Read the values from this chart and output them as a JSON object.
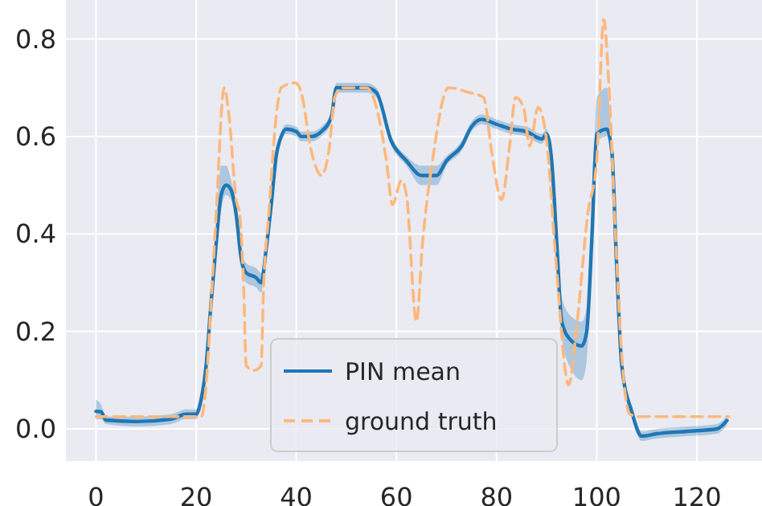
{
  "chart_data": {
    "type": "line",
    "xlim": [
      -6,
      133
    ],
    "ylim": [
      -0.066,
      0.88
    ],
    "xticks": [
      0,
      20,
      40,
      60,
      80,
      100,
      120
    ],
    "yticks": [
      {
        "value": 0,
        "label": "0.0"
      },
      {
        "value": 0.2,
        "label": "0.2"
      },
      {
        "value": 0.4,
        "label": "0.4"
      },
      {
        "value": 0.6,
        "label": "0.6"
      },
      {
        "value": 0.8,
        "label": "0.8"
      }
    ],
    "grid": true,
    "legend": "bottom",
    "series": [
      {
        "name": "PIN mean",
        "color": "#1f77b4",
        "line_style": "solid",
        "x": [
          0,
          1,
          2,
          8,
          15,
          18,
          20,
          21,
          22,
          23,
          24,
          25,
          26,
          27,
          28,
          29,
          30,
          32,
          33,
          34,
          35,
          36,
          37,
          38,
          40,
          41,
          43,
          45,
          47,
          48,
          50,
          52,
          54,
          56,
          59,
          62,
          65,
          68,
          70,
          73,
          75,
          77,
          80,
          83,
          86,
          89,
          90,
          91,
          92,
          93,
          95,
          97,
          98,
          99,
          100,
          102,
          103,
          104,
          105,
          107,
          109,
          112,
          118,
          124,
          126
        ],
        "values": [
          0.036,
          0.035,
          0.018,
          0.015,
          0.02,
          0.03,
          0.03,
          0.06,
          0.13,
          0.26,
          0.38,
          0.48,
          0.5,
          0.49,
          0.44,
          0.35,
          0.32,
          0.31,
          0.3,
          0.37,
          0.46,
          0.56,
          0.6,
          0.615,
          0.61,
          0.6,
          0.6,
          0.61,
          0.64,
          0.7,
          0.7,
          0.7,
          0.7,
          0.69,
          0.59,
          0.55,
          0.52,
          0.52,
          0.55,
          0.58,
          0.62,
          0.635,
          0.625,
          0.615,
          0.61,
          0.595,
          0.605,
          0.55,
          0.385,
          0.22,
          0.18,
          0.17,
          0.2,
          0.385,
          0.605,
          0.615,
          0.57,
          0.33,
          0.13,
          0.035,
          -0.015,
          -0.01,
          -0.005,
          0.0,
          0.017
        ],
        "lower": [
          0.02,
          0.02,
          0.01,
          0.005,
          0.01,
          0.02,
          0.02,
          0.05,
          0.12,
          0.25,
          0.35,
          0.45,
          0.48,
          0.47,
          0.42,
          0.33,
          0.3,
          0.29,
          0.28,
          0.36,
          0.45,
          0.55,
          0.59,
          0.605,
          0.6,
          0.59,
          0.59,
          0.6,
          0.63,
          0.69,
          0.69,
          0.69,
          0.69,
          0.68,
          0.58,
          0.54,
          0.5,
          0.5,
          0.54,
          0.57,
          0.61,
          0.625,
          0.615,
          0.605,
          0.6,
          0.585,
          0.595,
          0.54,
          0.37,
          0.19,
          0.12,
          0.1,
          0.14,
          0.37,
          0.59,
          0.6,
          0.55,
          0.32,
          0.12,
          0.025,
          -0.025,
          -0.02,
          -0.015,
          -0.01,
          0.007
        ],
        "upper": [
          0.06,
          0.05,
          0.025,
          0.025,
          0.03,
          0.04,
          0.04,
          0.07,
          0.14,
          0.27,
          0.42,
          0.54,
          0.54,
          0.51,
          0.46,
          0.37,
          0.34,
          0.33,
          0.32,
          0.38,
          0.47,
          0.57,
          0.61,
          0.625,
          0.62,
          0.61,
          0.61,
          0.62,
          0.65,
          0.71,
          0.71,
          0.71,
          0.71,
          0.7,
          0.6,
          0.56,
          0.54,
          0.54,
          0.56,
          0.59,
          0.63,
          0.645,
          0.635,
          0.625,
          0.62,
          0.605,
          0.615,
          0.56,
          0.4,
          0.27,
          0.23,
          0.22,
          0.25,
          0.4,
          0.68,
          0.7,
          0.59,
          0.34,
          0.14,
          0.045,
          -0.005,
          0,
          0.005,
          0.01,
          0.027
        ]
      },
      {
        "name": "ground truth",
        "color": "#fdb97d",
        "line_style": "dashed",
        "x": [
          0,
          2,
          13,
          21,
          22,
          23,
          24,
          25.6,
          26.6,
          28,
          28.7,
          29.5,
          30,
          31.5,
          33,
          33.4,
          34.5,
          36.2,
          37,
          39.8,
          41,
          43,
          45,
          46.5,
          47.7,
          49,
          54,
          56,
          58,
          59.2,
          61,
          62,
          64,
          65.2,
          67.2,
          70.4,
          74.6,
          77.4,
          79,
          81,
          82.6,
          83.8,
          85.4,
          86.6,
          88.3,
          90,
          91.8,
          94.4,
          96,
          98.2,
          100,
          101.4,
          102.4,
          103.7,
          105,
          106.6,
          108.5,
          126.4
        ],
        "values": [
          0.025,
          0.025,
          0.025,
          0.025,
          0.09,
          0.26,
          0.44,
          0.7,
          0.64,
          0.47,
          0.44,
          0.29,
          0.13,
          0.12,
          0.13,
          0.27,
          0.44,
          0.66,
          0.7,
          0.71,
          0.69,
          0.57,
          0.52,
          0.57,
          0.68,
          0.7,
          0.7,
          0.66,
          0.55,
          0.46,
          0.51,
          0.48,
          0.22,
          0.38,
          0.55,
          0.7,
          0.69,
          0.68,
          0.57,
          0.47,
          0.58,
          0.68,
          0.66,
          0.58,
          0.66,
          0.59,
          0.35,
          0.09,
          0.21,
          0.44,
          0.55,
          0.84,
          0.71,
          0.41,
          0.15,
          0.03,
          0.025,
          0.025
        ]
      }
    ]
  }
}
